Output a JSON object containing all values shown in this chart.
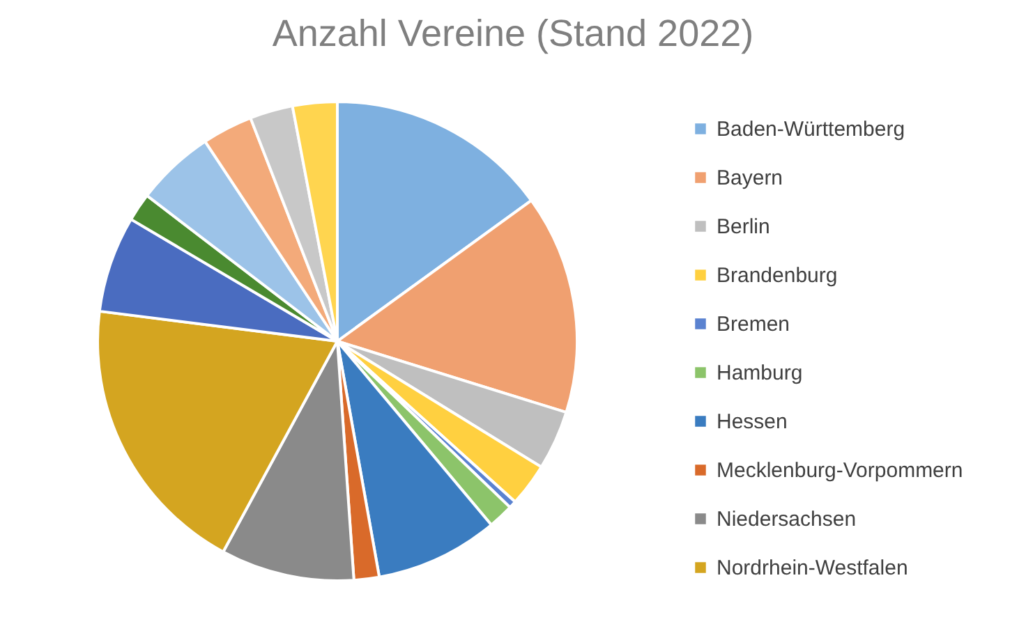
{
  "chart_data": {
    "type": "pie",
    "title": "Anzahl Vereine (Stand 2022)",
    "legend": "right",
    "categories": [
      "Baden-Württemberg",
      "Bayern",
      "Berlin",
      "Brandenburg",
      "Bremen",
      "Hamburg",
      "Hessen",
      "Mecklenburg-Vorpommern",
      "Niedersachsen",
      "Nordrhein-Westfalen",
      null,
      null,
      null,
      null,
      null,
      null
    ],
    "values": [
      15,
      14.8,
      4,
      2.9,
      0.5,
      1.7,
      8.3,
      1.7,
      9,
      19.1,
      6.5,
      1.9,
      5.3,
      3.4,
      2.9,
      3
    ],
    "colors": [
      "#7eb0e0",
      "#f0a070",
      "#bfbfbf",
      "#ffd040",
      "#5a82d0",
      "#8cc46a",
      "#3a7cc0",
      "#d96a2a",
      "#8a8a8a",
      "#d4a520",
      "#4a6cc0",
      "#4a8a30",
      "#9cc3e8",
      "#f3aa7a",
      "#c8c8c8",
      "#ffd54f"
    ]
  }
}
